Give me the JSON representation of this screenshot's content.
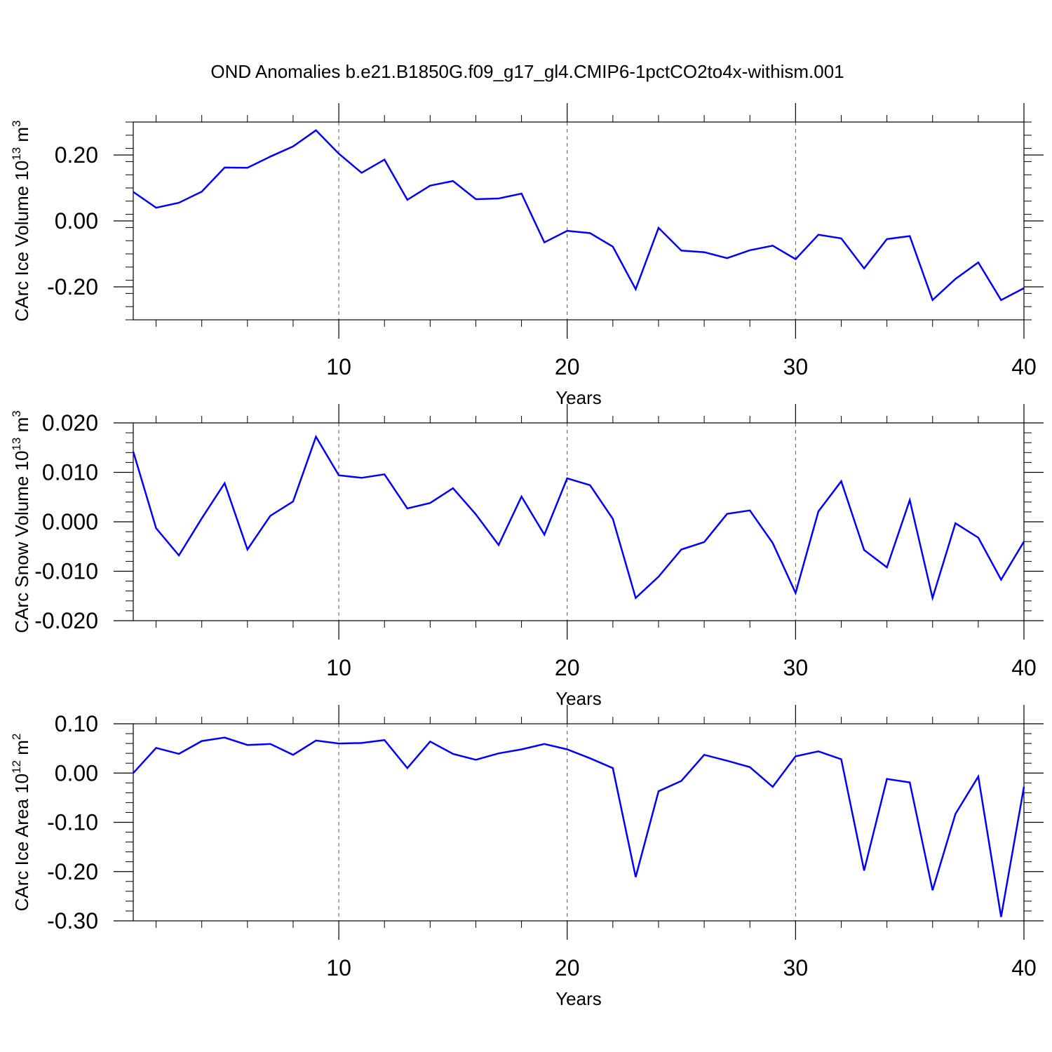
{
  "figure": {
    "title": "OND Anomalies b.e21.B1850G.f09_g17_gl4.CMIP6-1pctCO2to4x-withism.001",
    "line_color": "#0000ff"
  },
  "chart_data": [
    {
      "type": "line",
      "xlabel": "Years",
      "ylabel": {
        "main": "CArc Ice Volume 10",
        "exp": "13",
        "unit": " m",
        "unit_exp": "3"
      },
      "xlim": [
        1,
        40
      ],
      "ylim": [
        -0.3,
        0.3
      ],
      "x_ticks": [
        10,
        20,
        30,
        40
      ],
      "x_tick_labels": [
        "10",
        "20",
        "30",
        "40"
      ],
      "y_ticks": [
        -0.2,
        0.0,
        0.2
      ],
      "y_tick_labels": [
        "-0.20",
        "0.00",
        "0.20"
      ],
      "grid": "dashed vertical at major x ticks",
      "x": [
        1,
        2,
        3,
        4,
        5,
        6,
        7,
        8,
        9,
        10,
        11,
        12,
        13,
        14,
        15,
        16,
        17,
        18,
        19,
        20,
        21,
        22,
        23,
        24,
        25,
        26,
        27,
        28,
        29,
        30,
        31,
        32,
        33,
        34,
        35,
        36,
        37,
        38,
        39,
        40
      ],
      "values": [
        0.088,
        0.04,
        0.055,
        0.089,
        0.162,
        0.161,
        0.195,
        0.226,
        0.275,
        0.204,
        0.146,
        0.186,
        0.064,
        0.107,
        0.121,
        0.066,
        0.068,
        0.083,
        -0.065,
        -0.03,
        -0.037,
        -0.078,
        -0.207,
        -0.021,
        -0.09,
        -0.095,
        -0.113,
        -0.089,
        -0.075,
        -0.116,
        -0.042,
        -0.053,
        -0.144,
        -0.055,
        -0.046,
        -0.24,
        -0.176,
        -0.126,
        -0.24,
        -0.204
      ]
    },
    {
      "type": "line",
      "xlabel": "Years",
      "ylabel": {
        "main": "CArc Snow Volume 10",
        "exp": "13",
        "unit": " m",
        "unit_exp": "3"
      },
      "xlim": [
        1,
        40
      ],
      "ylim": [
        -0.02,
        0.02
      ],
      "x_ticks": [
        10,
        20,
        30,
        40
      ],
      "x_tick_labels": [
        "10",
        "20",
        "30",
        "40"
      ],
      "y_ticks": [
        -0.02,
        -0.01,
        0.0,
        0.01,
        0.02
      ],
      "y_tick_labels": [
        "-0.020",
        "-0.010",
        "0.000",
        "0.010",
        "0.020"
      ],
      "grid": "dashed vertical at major x ticks",
      "x": [
        1,
        2,
        3,
        4,
        5,
        6,
        7,
        8,
        9,
        10,
        11,
        12,
        13,
        14,
        15,
        16,
        17,
        18,
        19,
        20,
        21,
        22,
        23,
        24,
        25,
        26,
        27,
        28,
        29,
        30,
        31,
        32,
        33,
        34,
        35,
        36,
        37,
        38,
        39,
        40
      ],
      "values": [
        0.0142,
        -0.0013,
        -0.0068,
        0.0007,
        0.0078,
        -0.0056,
        0.0012,
        0.0041,
        0.0172,
        0.0094,
        0.0089,
        0.0096,
        0.0027,
        0.0038,
        0.0068,
        0.0015,
        -0.0047,
        0.0051,
        -0.0026,
        0.0088,
        0.0074,
        0.0006,
        -0.0154,
        -0.0111,
        -0.0056,
        -0.0041,
        0.0016,
        0.0023,
        -0.0043,
        -0.0144,
        0.0021,
        0.0082,
        -0.0057,
        -0.0092,
        0.0044,
        -0.0154,
        -0.0003,
        -0.0032,
        -0.0117,
        -0.004
      ]
    },
    {
      "type": "line",
      "xlabel": "Years",
      "ylabel": {
        "main": "CArc Ice Area 10",
        "exp": "12",
        "unit": " m",
        "unit_exp": "2"
      },
      "xlim": [
        1,
        40
      ],
      "ylim": [
        -0.3,
        0.1
      ],
      "x_ticks": [
        10,
        20,
        30,
        40
      ],
      "x_tick_labels": [
        "10",
        "20",
        "30",
        "40"
      ],
      "y_ticks": [
        -0.3,
        -0.2,
        -0.1,
        0.0,
        0.1
      ],
      "y_tick_labels": [
        "-0.30",
        "-0.20",
        "-0.10",
        "0.00",
        "0.10"
      ],
      "grid": "dashed vertical at major x ticks",
      "x": [
        1,
        2,
        3,
        4,
        5,
        6,
        7,
        8,
        9,
        10,
        11,
        12,
        13,
        14,
        15,
        16,
        17,
        18,
        19,
        20,
        21,
        22,
        23,
        24,
        25,
        26,
        27,
        28,
        29,
        30,
        31,
        32,
        33,
        34,
        35,
        36,
        37,
        38,
        39,
        40
      ],
      "values": [
        0.0,
        0.051,
        0.039,
        0.065,
        0.072,
        0.057,
        0.059,
        0.037,
        0.066,
        0.06,
        0.061,
        0.067,
        0.01,
        0.064,
        0.039,
        0.027,
        0.04,
        0.048,
        0.059,
        0.048,
        0.03,
        0.01,
        -0.211,
        -0.037,
        -0.016,
        0.037,
        0.025,
        0.012,
        -0.028,
        0.034,
        0.044,
        0.028,
        -0.198,
        -0.012,
        -0.019,
        -0.238,
        -0.083,
        -0.007,
        -0.292,
        -0.028
      ]
    }
  ]
}
